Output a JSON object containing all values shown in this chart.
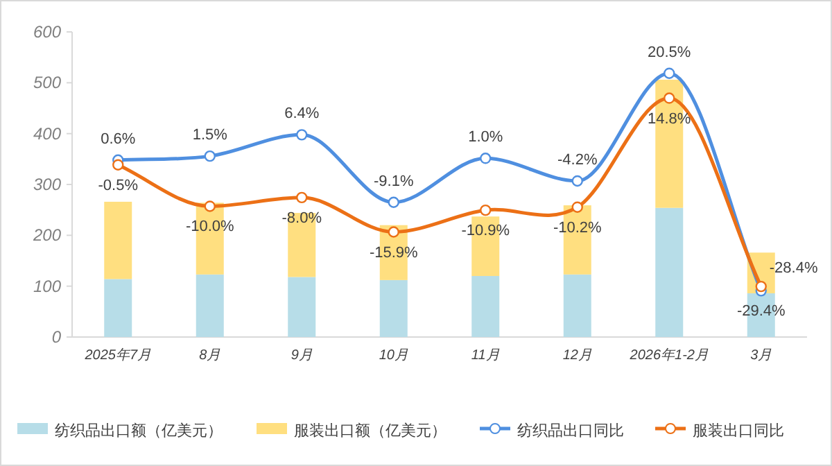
{
  "chart_data": {
    "type": "bar",
    "stacked": true,
    "categories": [
      "2025年7月",
      "8月",
      "9月",
      "10月",
      "11月",
      "12月",
      "2026年1-2月",
      "3月"
    ],
    "series": [
      {
        "name": "纺织品出口额（亿美元）",
        "color": "#b7dde8",
        "values": [
          114,
          123,
          118,
          112,
          120,
          123,
          254,
          86
        ]
      },
      {
        "name": "服装出口额（亿美元）",
        "color": "#ffdf80",
        "values": [
          152,
          141,
          126,
          108,
          117,
          136,
          252,
          80
        ]
      },
      {
        "name": "纺织品出口同比",
        "type": "line",
        "axis": "y2",
        "color": "#4f8fe0",
        "values": [
          0.6,
          1.5,
          6.4,
          -9.1,
          1.0,
          -4.2,
          20.5,
          -29.4
        ],
        "value_labels": [
          "0.6%",
          "1.5%",
          "6.4%",
          "-9.1%",
          "1.0%",
          "-4.2%",
          "20.5%",
          "-29.4%"
        ]
      },
      {
        "name": "服装出口同比",
        "type": "line",
        "axis": "y2",
        "color": "#ec7016",
        "values": [
          -0.5,
          -10.0,
          -8.0,
          -15.9,
          -10.9,
          -10.2,
          14.8,
          -28.4
        ],
        "value_labels": [
          "-0.5%",
          "-10.0%",
          "-8.0%",
          "-15.9%",
          "-10.9%",
          "-10.2%",
          "14.8%",
          "-28.4%"
        ]
      }
    ],
    "ylim": [
      0,
      600
    ],
    "yticks": [
      0,
      100,
      200,
      300,
      400,
      500,
      600
    ],
    "y2lim": [
      -40,
      30
    ],
    "marker": "circle",
    "grid": false,
    "legend": "bottom"
  }
}
